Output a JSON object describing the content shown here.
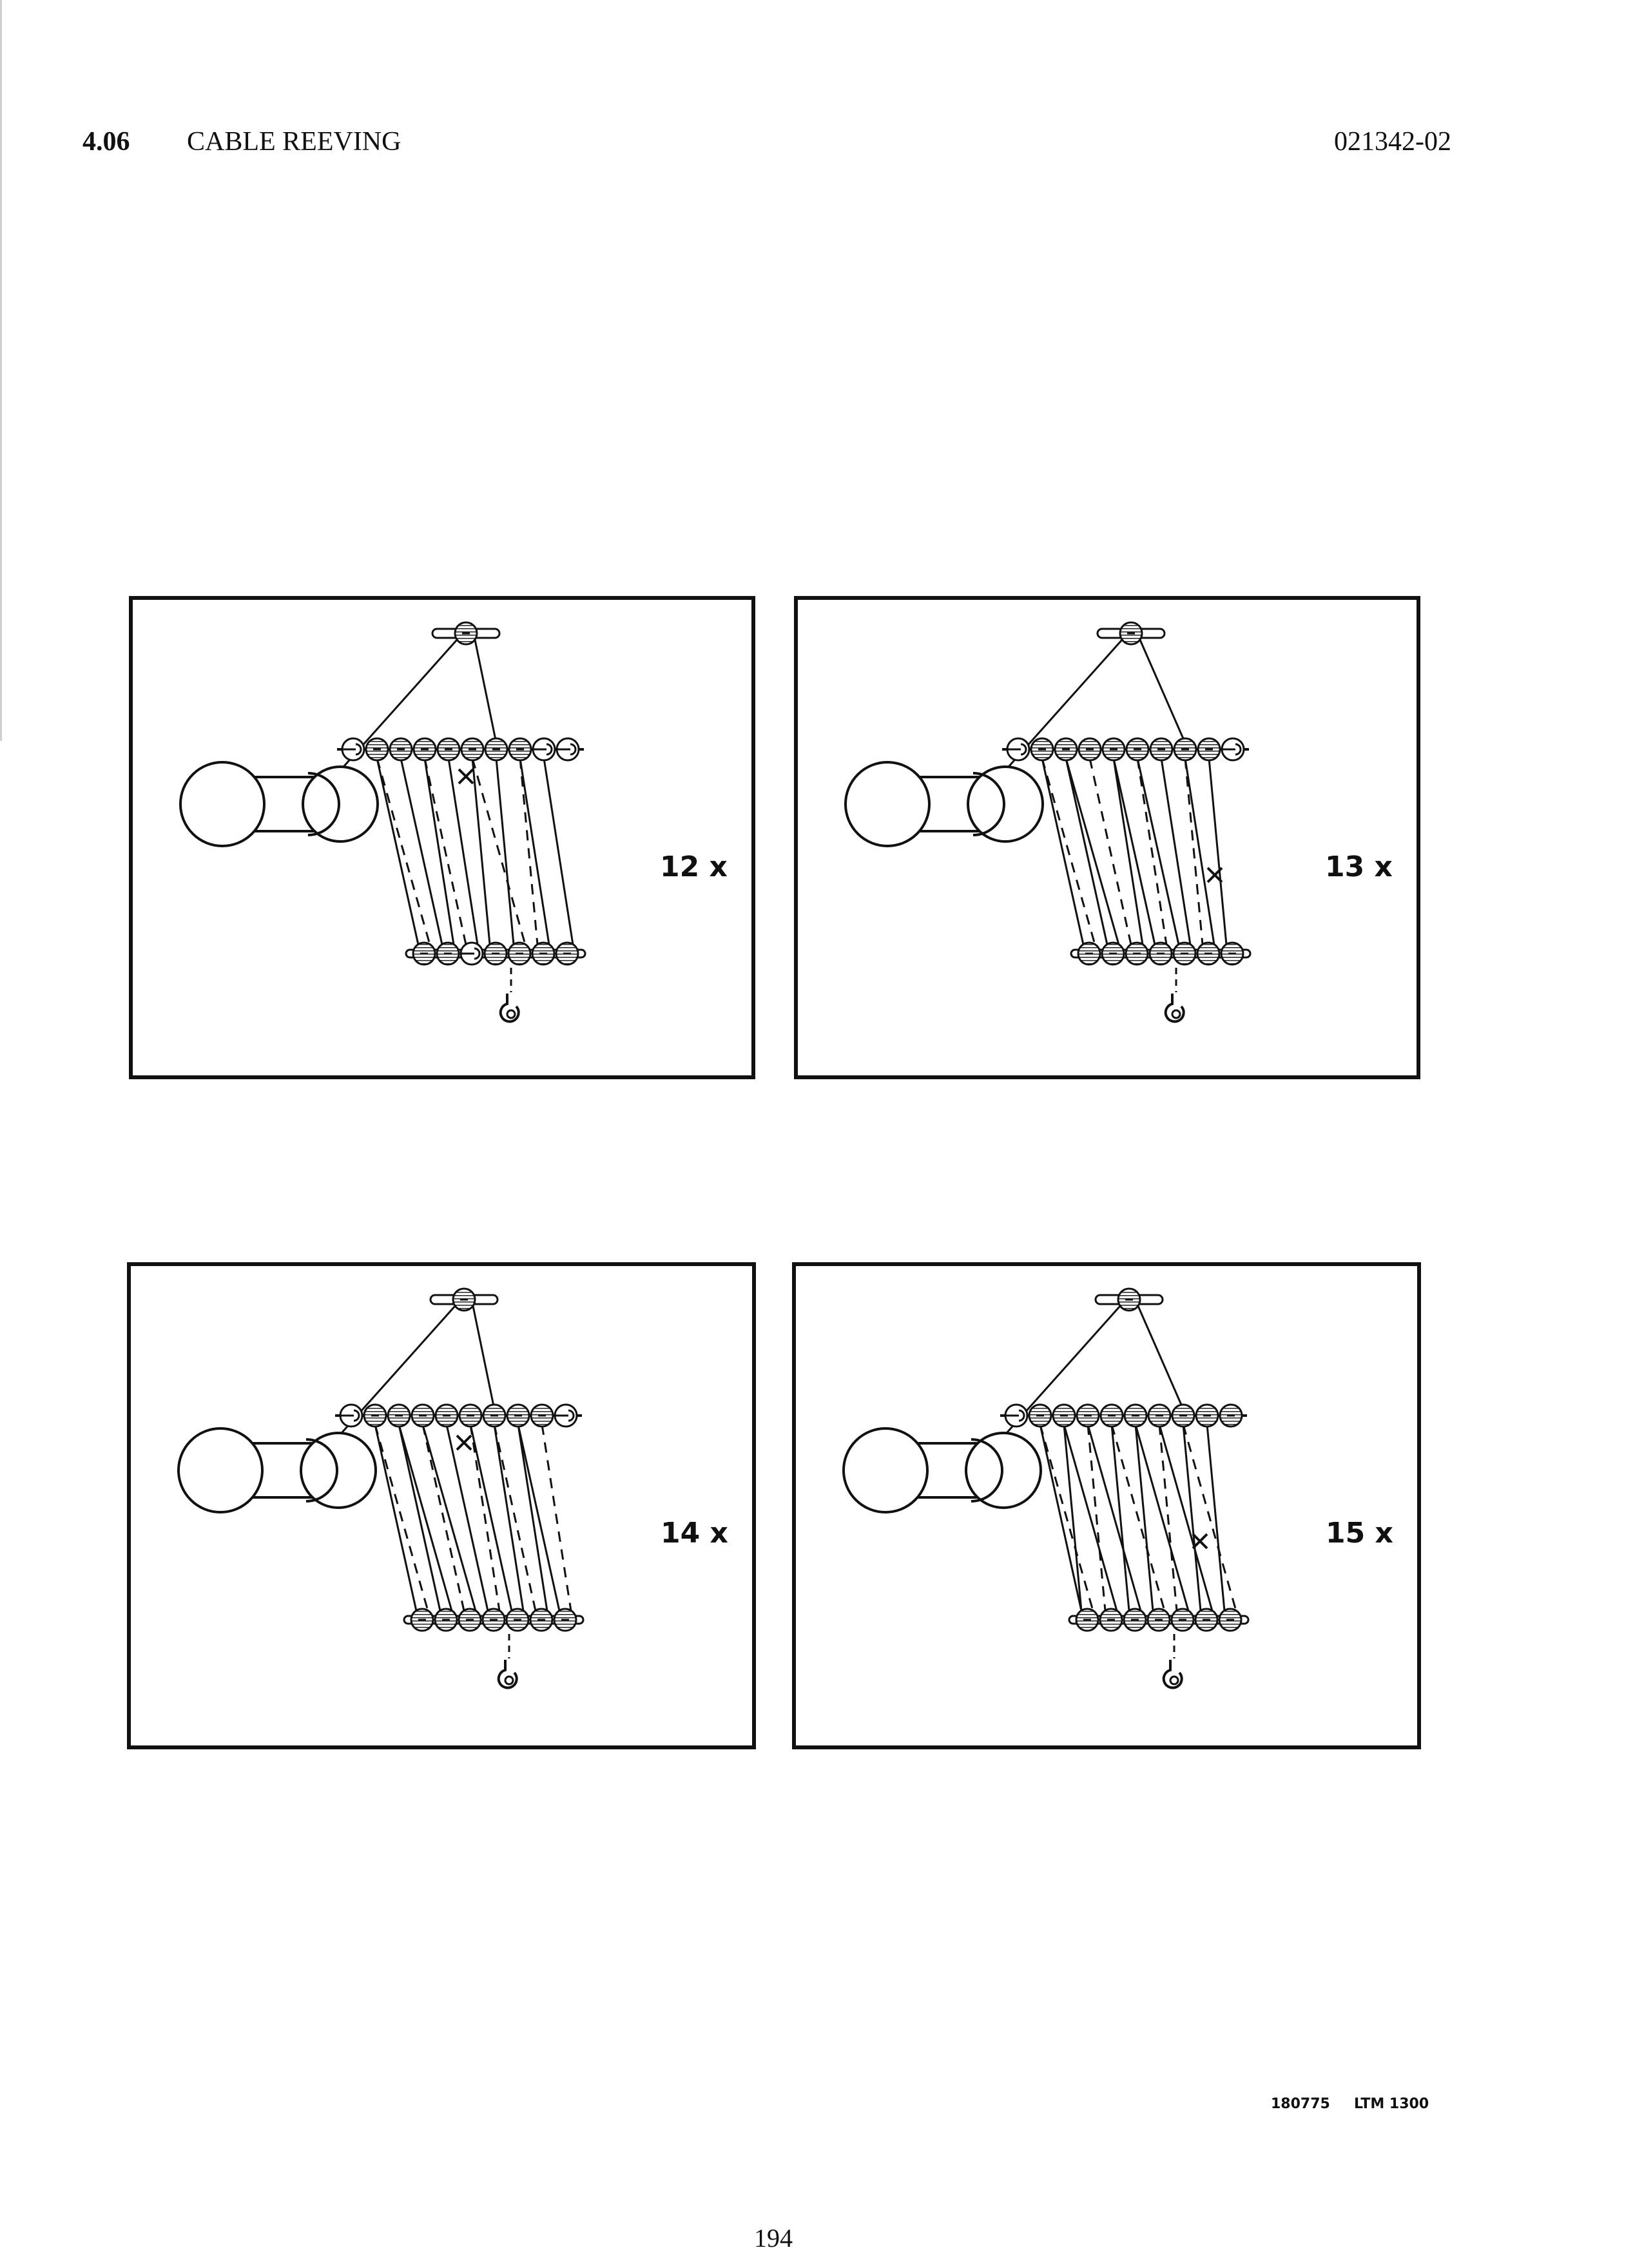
{
  "header": {
    "section_number": "4.06",
    "section_title": "CABLE REEVING",
    "document_number": "021342-02"
  },
  "diagrams": [
    {
      "label": "12 x",
      "parts_of_line": 12
    },
    {
      "label": "13 x",
      "parts_of_line": 13
    },
    {
      "label": "14 x",
      "parts_of_line": 14
    },
    {
      "label": "15 x",
      "parts_of_line": 15
    }
  ],
  "footer": {
    "code": "180775",
    "model": "LTM 1300",
    "page_number": "194"
  }
}
